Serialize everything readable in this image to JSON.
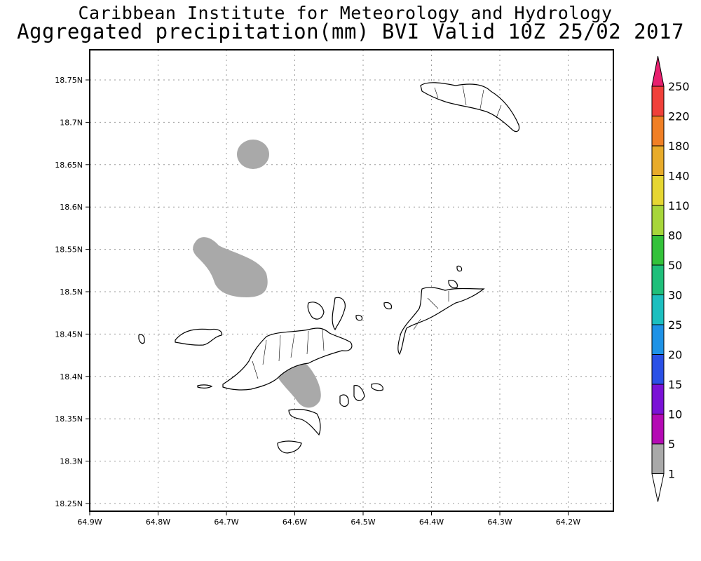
{
  "header": {
    "title": "Caribbean Institute for Meteorology and Hydrology",
    "subtitle": "Aggregated precipitation(mm) BVI Valid 10Z 25/02 2017"
  },
  "map": {
    "lon_ticks": [
      "64.9W",
      "64.8W",
      "64.7W",
      "64.6W",
      "64.5W",
      "64.4W",
      "64.3W",
      "64.2W"
    ],
    "lat_ticks": [
      "18.75N",
      "18.7N",
      "18.65N",
      "18.6N",
      "18.55N",
      "18.5N",
      "18.45N",
      "18.4N",
      "18.35N",
      "18.3N",
      "18.25N"
    ],
    "lon_range": [
      -64.9,
      -64.15
    ],
    "lat_range": [
      18.24,
      18.79
    ],
    "grid": true,
    "precip_fill_color": "#a9a9a9",
    "precip_areas": [
      {
        "value_range": "1-5",
        "center_lon": -64.665,
        "center_lat": 18.662
      },
      {
        "value_range": "1-5",
        "center_lon": -64.67,
        "center_lat": 18.525
      },
      {
        "value_range": "1-5",
        "center_lon": -64.585,
        "center_lat": 18.39
      }
    ]
  },
  "colorbar": {
    "labels": [
      "250",
      "220",
      "180",
      "140",
      "110",
      "80",
      "50",
      "30",
      "25",
      "20",
      "15",
      "10",
      "5",
      "1"
    ],
    "colors": [
      "#e8206e",
      "#f0403a",
      "#f07f25",
      "#e8ab2a",
      "#e6d632",
      "#a7d63a",
      "#33c23a",
      "#1fbf7a",
      "#1cbfbf",
      "#1e92e6",
      "#2a50e6",
      "#7a12d6",
      "#b40ab4",
      "#a9a9a9",
      "#ffffff"
    ]
  }
}
